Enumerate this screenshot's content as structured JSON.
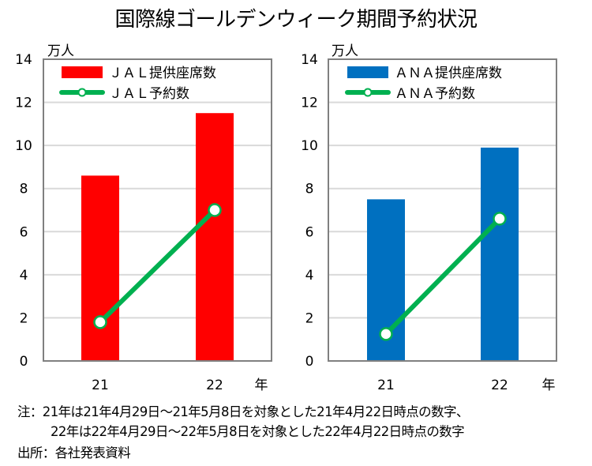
{
  "title": "国際線ゴールデンウィーク期間予約状況",
  "chart_data": [
    {
      "type": "bar+line",
      "title": "",
      "ylabel": "万人",
      "xlabel": "年",
      "categories": [
        "21",
        "22"
      ],
      "ylim": [
        0,
        14
      ],
      "yticks": [
        "0",
        "2",
        "4",
        "6",
        "8",
        "10",
        "12",
        "14"
      ],
      "grid": true,
      "legend_position": "top-left",
      "series": [
        {
          "name": "ＪＡＬ提供座席数",
          "kind": "bar",
          "color": "#ff0000",
          "values": [
            8.6,
            11.5
          ]
        },
        {
          "name": "ＪＡＬ予約数",
          "kind": "line",
          "color": "#00b050",
          "values": [
            1.8,
            7.0
          ]
        }
      ]
    },
    {
      "type": "bar+line",
      "title": "",
      "ylabel": "万人",
      "xlabel": "年",
      "categories": [
        "21",
        "22"
      ],
      "ylim": [
        0,
        14
      ],
      "yticks": [
        "0",
        "2",
        "4",
        "6",
        "8",
        "10",
        "12",
        "14"
      ],
      "grid": true,
      "legend_position": "top-left",
      "series": [
        {
          "name": "ＡＮＡ提供座席数",
          "kind": "bar",
          "color": "#0070c0",
          "values": [
            7.5,
            9.9
          ]
        },
        {
          "name": "ＡＮＡ予約数",
          "kind": "line",
          "color": "#00b050",
          "values": [
            1.25,
            6.6
          ]
        }
      ]
    }
  ],
  "notes": {
    "line1": "注：21年は21年4月29日～21年5月8日を対象とした21年4月22日時点の数字、",
    "line2": "22年は22年4月29日～22年5月8日を対象とした22年4月22日時点の数字",
    "source": "出所：各社発表資料"
  }
}
